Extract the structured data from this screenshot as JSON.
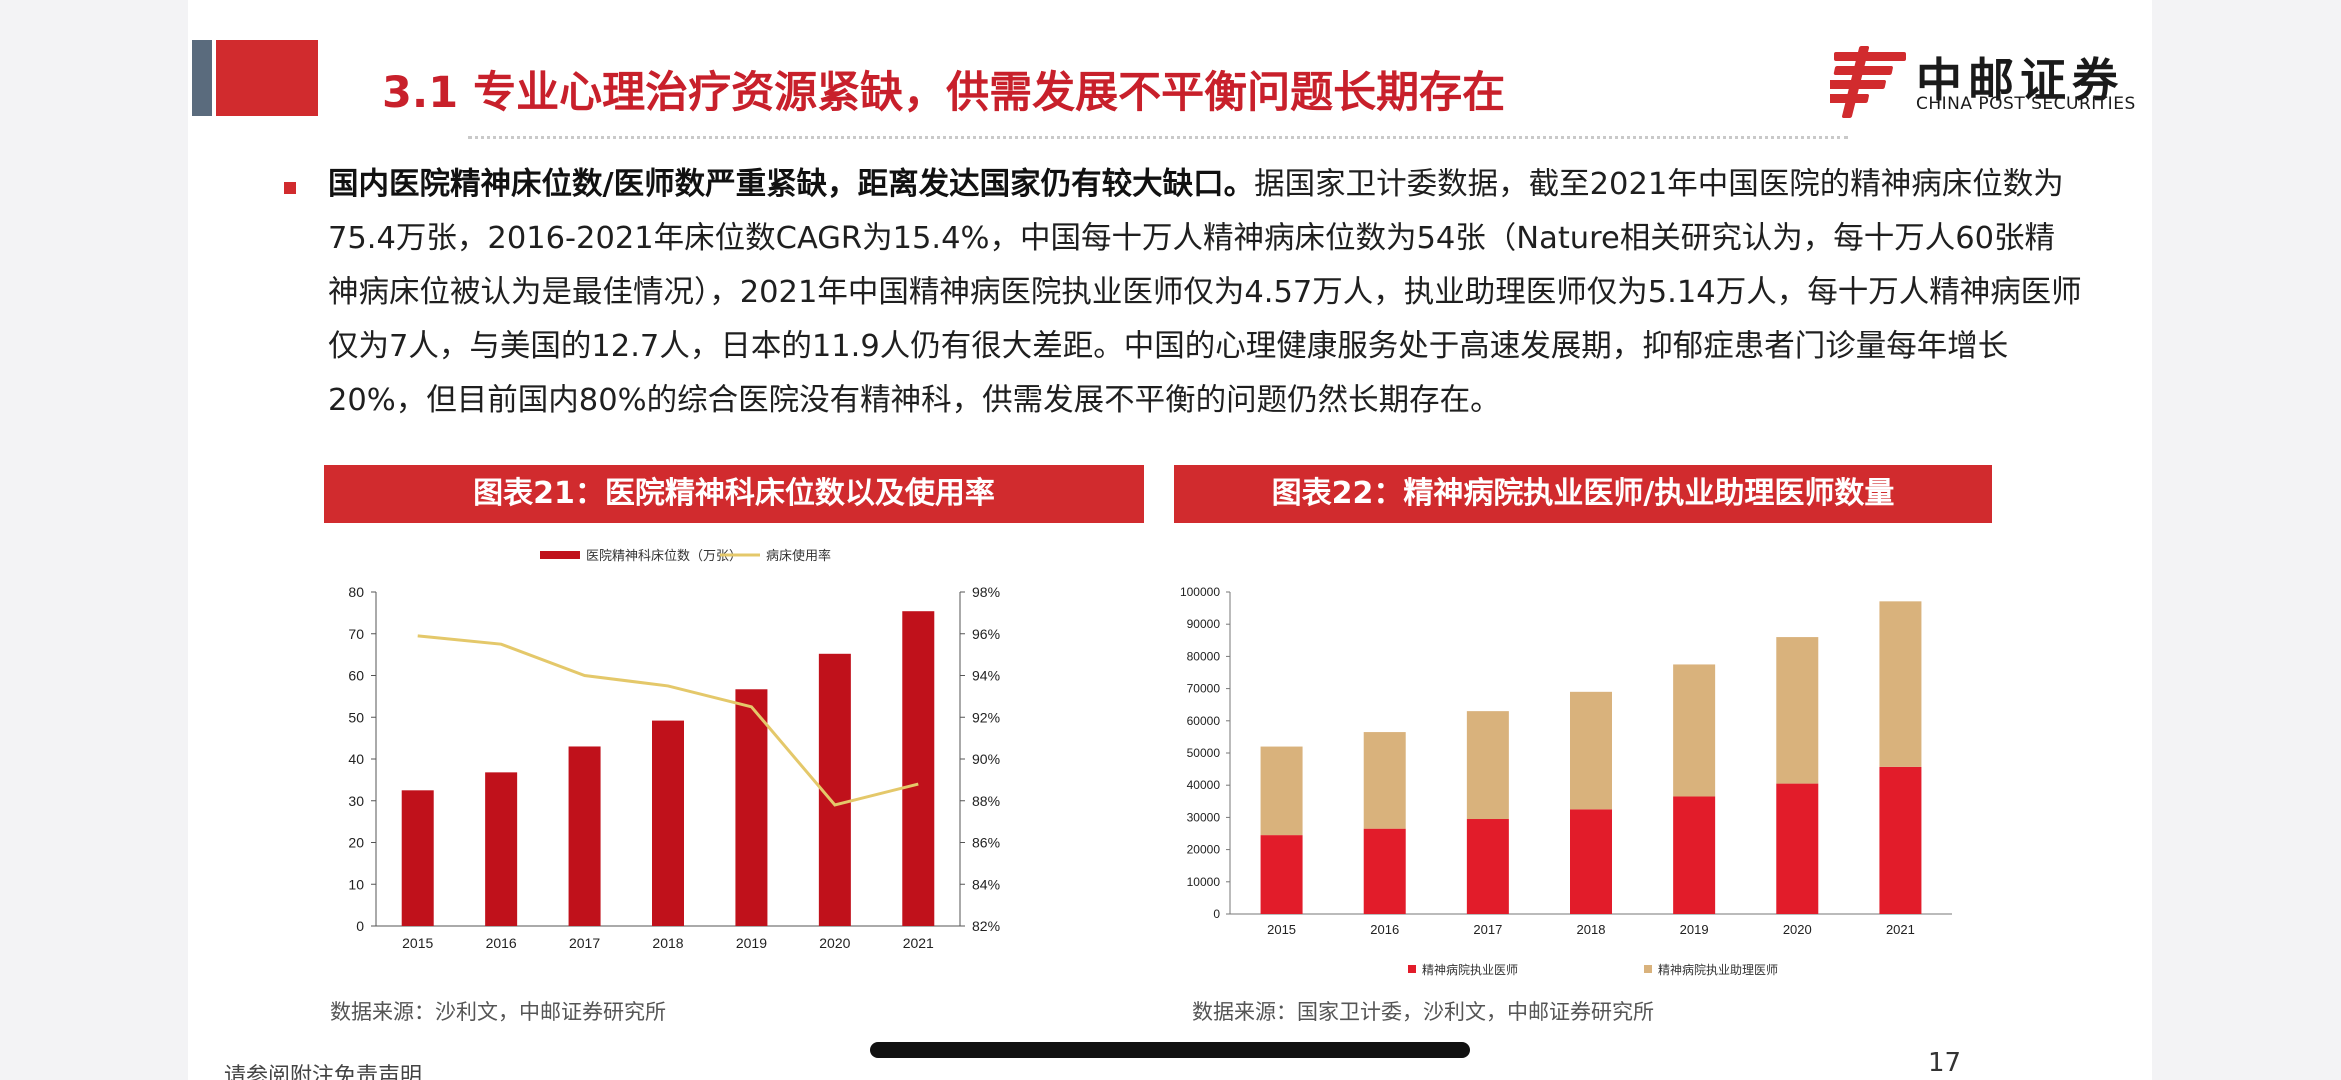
{
  "header": {
    "title": "3.1 专业心理治疗资源紧缺，供需发展不平衡问题长期存在",
    "logo_cn": "中邮证券",
    "logo_en": "CHINA POST SECURITIES"
  },
  "bullet": {
    "lead": "国内医院精神床位数/医师数严重紧缺，距离发达国家仍有较大缺口。",
    "body": "据国家卫计委数据，截至2021年中国医院的精神病床位数为75.4万张，2016-2021年床位数CAGR为15.4%，中国每十万人精神病床位数为54张（Nature相关研究认为，每十万人60张精神病床位被认为是最佳情况），2021年中国精神病医院执业医师仅为4.57万人，执业助理医师仅为5.14万人，每十万人精神病医师仅为7人，与美国的12.7人，日本的11.9人仍有很大差距。中国的心理健康服务处于高速发展期，抑郁症患者门诊量每年增长20%，但目前国内80%的综合医院没有精神科，供需发展不平衡的问题仍然长期存在。"
  },
  "chart21": {
    "heading": "图表21：医院精神科床位数以及使用率",
    "source": "数据来源：沙利文，中邮证券研究所"
  },
  "chart22": {
    "heading": "图表22：精神病院执业医师/执业助理医师数量",
    "source": "数据来源：国家卫计委，沙利文，中邮证券研究所"
  },
  "footer": {
    "note": "请参阅附注免责声明",
    "page": "17"
  },
  "colors": {
    "accent_red": "#d12b2e",
    "bar_red": "#c0111b",
    "line_gold": "#e4c86a",
    "bar_tan": "#d9b27c",
    "bar_red2": "#e21c2a"
  },
  "chart_data": [
    {
      "type": "bar",
      "categories": [
        "2015",
        "2016",
        "2017",
        "2018",
        "2019",
        "2020",
        "2021"
      ],
      "series": [
        {
          "name": "医院精神科床位数（万张）",
          "type": "bar",
          "axis": "left",
          "values": [
            32.5,
            36.8,
            43.0,
            49.2,
            56.7,
            65.2,
            75.4
          ]
        },
        {
          "name": "病床使用率",
          "type": "line",
          "axis": "right",
          "values": [
            95.9,
            95.5,
            94.0,
            93.5,
            92.5,
            87.8,
            88.8
          ]
        }
      ],
      "ylim": [
        0,
        80
      ],
      "yticks": [
        0,
        10,
        20,
        30,
        40,
        50,
        60,
        70,
        80
      ],
      "y2lim": [
        82,
        98
      ],
      "y2ticks": [
        "82%",
        "84%",
        "86%",
        "88%",
        "90%",
        "92%",
        "94%",
        "96%",
        "98%"
      ],
      "legend": "top-center",
      "grid": false
    },
    {
      "type": "bar",
      "stacked": true,
      "categories": [
        "2015",
        "2016",
        "2017",
        "2018",
        "2019",
        "2020",
        "2021"
      ],
      "series": [
        {
          "name": "精神病院执业医师",
          "values": [
            24500,
            26500,
            29500,
            32500,
            36500,
            40500,
            45700
          ]
        },
        {
          "name": "精神病院执业助理医师",
          "values": [
            27500,
            30000,
            33500,
            36500,
            41000,
            45500,
            51400
          ]
        }
      ],
      "ylim": [
        0,
        100000
      ],
      "yticks": [
        "0",
        "10000",
        "20000",
        "30000",
        "40000",
        "50000",
        "60000",
        "70000",
        "80000",
        "90000",
        "100000"
      ],
      "legend": "bottom",
      "grid": false
    }
  ]
}
